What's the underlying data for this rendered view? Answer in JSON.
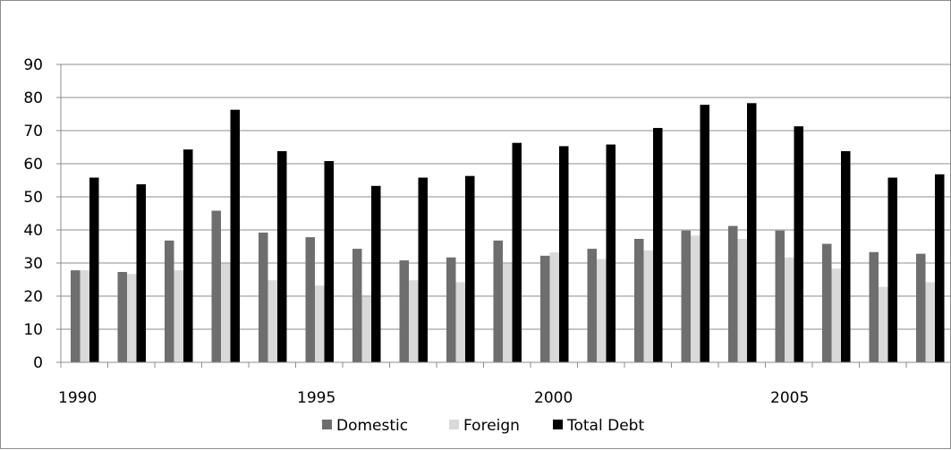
{
  "chart_data": {
    "type": "bar",
    "title": "",
    "xlabel": "",
    "ylabel": "",
    "ylim": [
      0,
      90
    ],
    "y_ticks": [
      0,
      10,
      20,
      30,
      40,
      50,
      60,
      70,
      80,
      90
    ],
    "categories": [
      "1990",
      "1991",
      "1992",
      "1993",
      "1994",
      "1995",
      "1996",
      "1997",
      "1998",
      "1999",
      "2000",
      "2001",
      "2002",
      "2003",
      "2004",
      "2005",
      "2006",
      "2007",
      "2008"
    ],
    "x_tick_labels": [
      "1990",
      "1995",
      "2000",
      "2005"
    ],
    "grid": "horizontal",
    "legend_position": "bottom",
    "series": [
      {
        "name": "Domestic",
        "color": "#6e6e6e",
        "values": [
          27.8,
          27.3,
          36.8,
          45.8,
          39.2,
          37.8,
          34.3,
          30.8,
          31.7,
          36.8,
          32.2,
          34.3,
          37.3,
          39.8,
          41.2,
          39.8,
          35.8,
          33.3,
          32.8
        ]
      },
      {
        "name": "Foreign",
        "color": "#d9d9d9",
        "values": [
          27.8,
          26.7,
          27.8,
          29.8,
          24.8,
          23.2,
          19.8,
          24.8,
          24.2,
          29.8,
          33.2,
          31.2,
          33.8,
          38.3,
          37.3,
          31.7,
          28.3,
          22.8,
          24.2
        ]
      },
      {
        "name": "Total Debt",
        "color": "#000000",
        "values": [
          55.8,
          53.8,
          64.3,
          76.3,
          63.8,
          60.8,
          53.3,
          55.8,
          56.3,
          66.3,
          65.3,
          65.8,
          70.8,
          77.8,
          78.3,
          71.3,
          63.8,
          55.8,
          56.8
        ]
      }
    ]
  }
}
